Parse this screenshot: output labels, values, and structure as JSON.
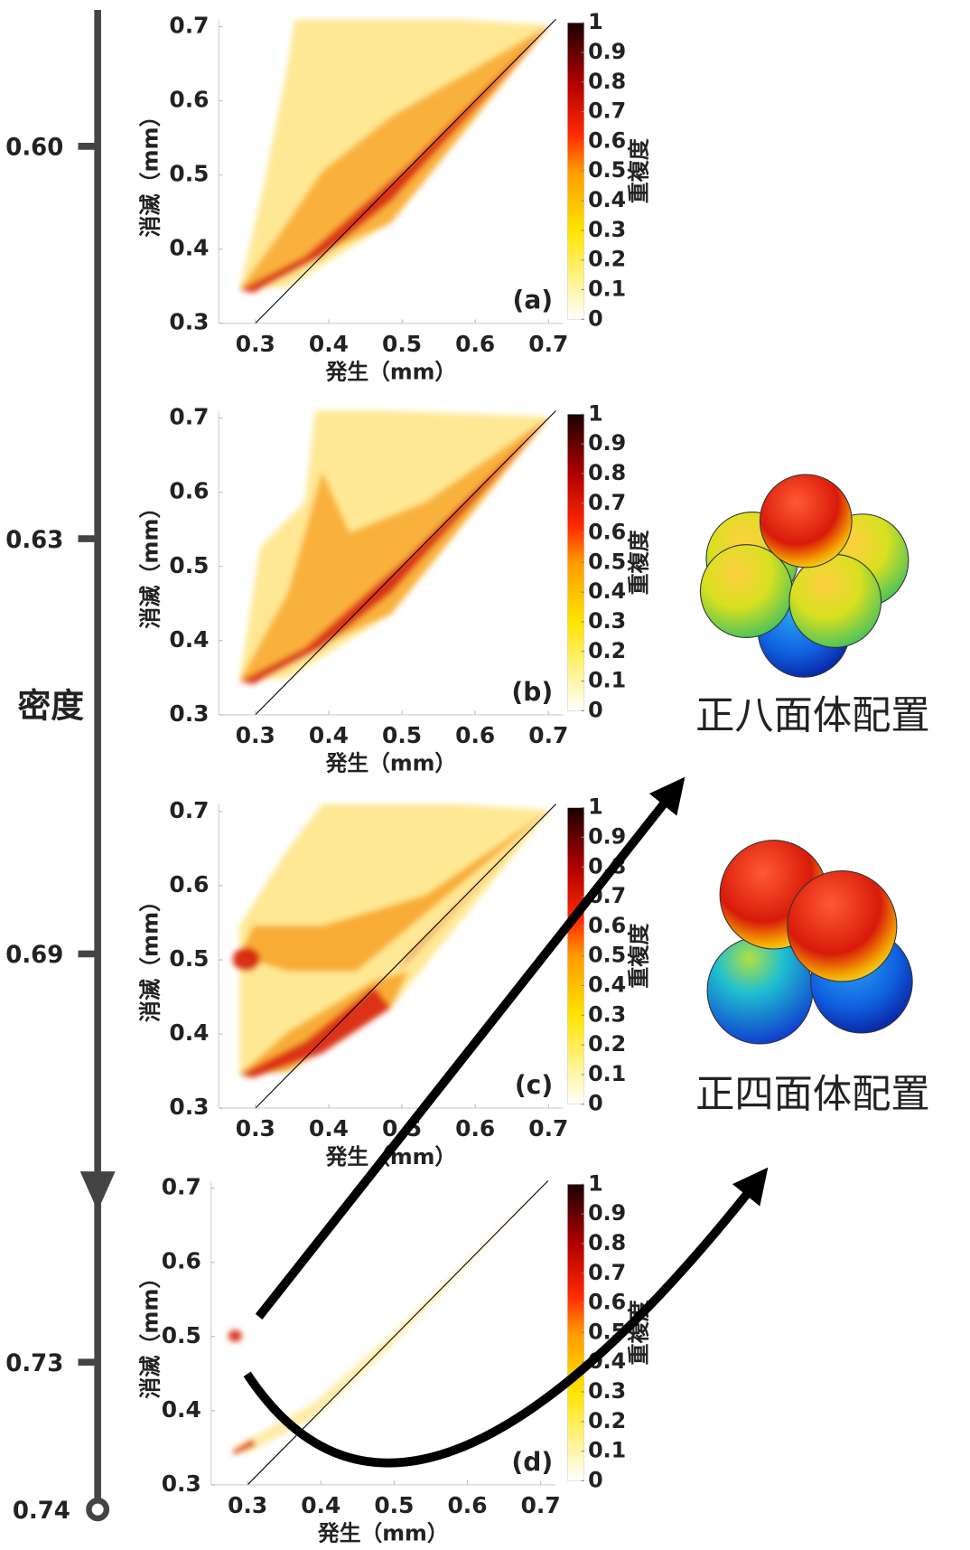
{
  "chart_data": [
    {
      "type": "density",
      "title": "(a)",
      "xlabel": "発生（mm）",
      "ylabel": "消滅（mm）",
      "xlim": [
        0.25,
        0.72
      ],
      "ylim": [
        0.3,
        0.71
      ],
      "xticks": [
        0.3,
        0.4,
        0.5,
        0.6,
        0.7
      ],
      "yticks": [
        0.3,
        0.4,
        0.5,
        0.6,
        0.7
      ],
      "colorbar": {
        "label": "重複度",
        "clim": [
          0,
          1
        ],
        "ticks": [
          0,
          0.1,
          0.2,
          0.3,
          0.4,
          0.5,
          0.6,
          0.7,
          0.8,
          0.9,
          1
        ]
      }
    },
    {
      "type": "density",
      "title": "(b)",
      "xlabel": "発生（mm）",
      "ylabel": "消滅（mm）",
      "xlim": [
        0.25,
        0.72
      ],
      "ylim": [
        0.3,
        0.71
      ],
      "xticks": [
        0.3,
        0.4,
        0.5,
        0.6,
        0.7
      ],
      "yticks": [
        0.3,
        0.4,
        0.5,
        0.6,
        0.7
      ],
      "colorbar": {
        "label": "重複度",
        "clim": [
          0,
          1
        ],
        "ticks": [
          0,
          0.1,
          0.2,
          0.3,
          0.4,
          0.5,
          0.6,
          0.7,
          0.8,
          0.9,
          1
        ]
      }
    },
    {
      "type": "density",
      "title": "(c)",
      "xlabel": "発生（mm）",
      "ylabel": "消滅（mm）",
      "xlim": [
        0.25,
        0.72
      ],
      "ylim": [
        0.3,
        0.71
      ],
      "xticks": [
        0.3,
        0.4,
        0.5,
        0.6,
        0.7
      ],
      "yticks": [
        0.3,
        0.4,
        0.5,
        0.6,
        0.7
      ],
      "colorbar": {
        "label": "重複度",
        "clim": [
          0,
          1
        ],
        "ticks": [
          0,
          0.1,
          0.2,
          0.3,
          0.4,
          0.5,
          0.6,
          0.7,
          0.8,
          0.9,
          1
        ]
      }
    },
    {
      "type": "density",
      "title": "(d)",
      "xlabel": "発生（mm）",
      "ylabel": "消滅（mm）",
      "xlim": [
        0.25,
        0.72
      ],
      "ylim": [
        0.3,
        0.71
      ],
      "xticks": [
        0.3,
        0.4,
        0.5,
        0.6,
        0.7
      ],
      "yticks": [
        0.3,
        0.4,
        0.5,
        0.6,
        0.7
      ],
      "colorbar": {
        "label": "重複度",
        "clim": [
          0,
          1
        ],
        "ticks": [
          0,
          0.1,
          0.2,
          0.3,
          0.4,
          0.5,
          0.6,
          0.7,
          0.8,
          0.9,
          1
        ]
      }
    }
  ],
  "density_axis": {
    "label": "密度",
    "ticks": [
      "0.60",
      "0.63",
      "0.69",
      "0.73",
      "0.74"
    ]
  },
  "structures": [
    "正八面体配置",
    "正四面体配置"
  ]
}
